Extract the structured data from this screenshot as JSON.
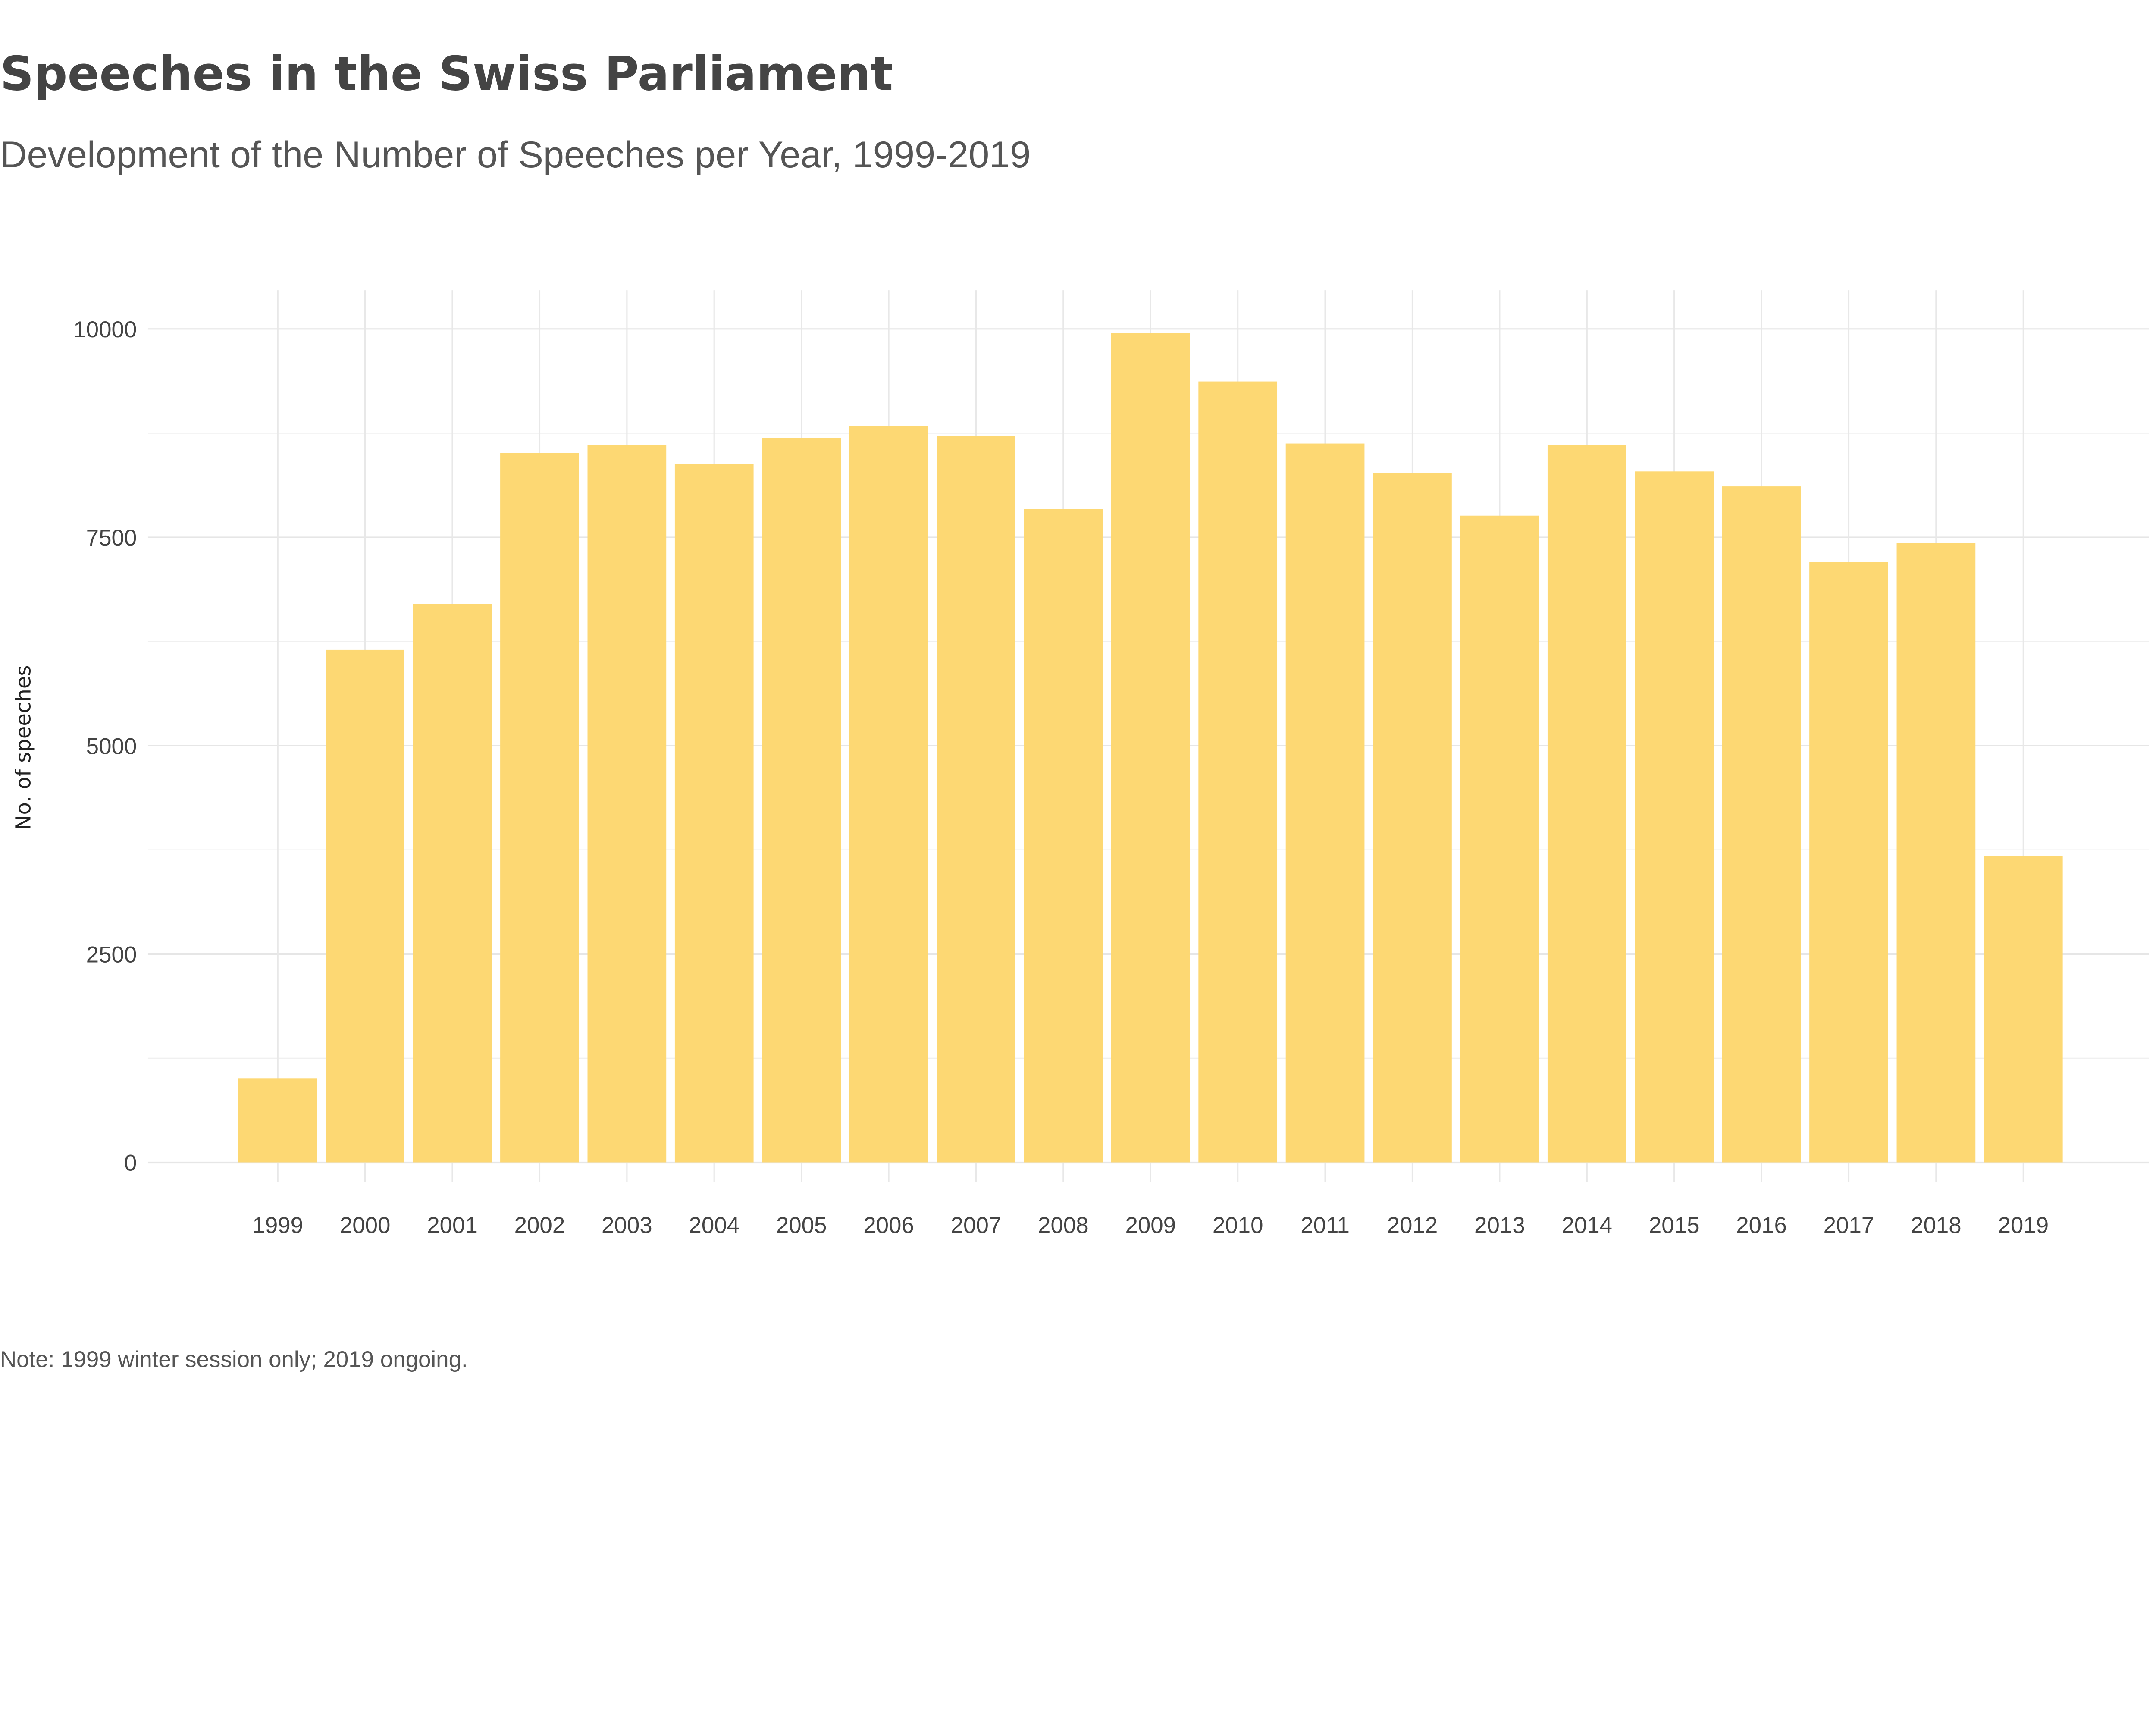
{
  "chart_data": {
    "type": "bar",
    "title": "Speeches in the Swiss Parliament",
    "subtitle": "Development of the Number of Speeches per Year, 1999-2019",
    "xlabel": "",
    "ylabel": "No. of speeches",
    "ylim": [
      0,
      10400
    ],
    "yticks": [
      0,
      2500,
      5000,
      7500,
      10000
    ],
    "grid": true,
    "bar_color": "#FDD873",
    "categories": [
      "1999",
      "2000",
      "2001",
      "2002",
      "2003",
      "2004",
      "2005",
      "2006",
      "2007",
      "2008",
      "2009",
      "2010",
      "2011",
      "2012",
      "2013",
      "2014",
      "2015",
      "2016",
      "2017",
      "2018",
      "2019"
    ],
    "values": [
      1010,
      6150,
      6700,
      8510,
      8610,
      8375,
      8690,
      8840,
      8720,
      7840,
      9950,
      9370,
      8625,
      8275,
      7760,
      8605,
      8290,
      8110,
      7200,
      7430,
      3680
    ],
    "note": "Note: 1999 winter session only; 2019 ongoing."
  }
}
